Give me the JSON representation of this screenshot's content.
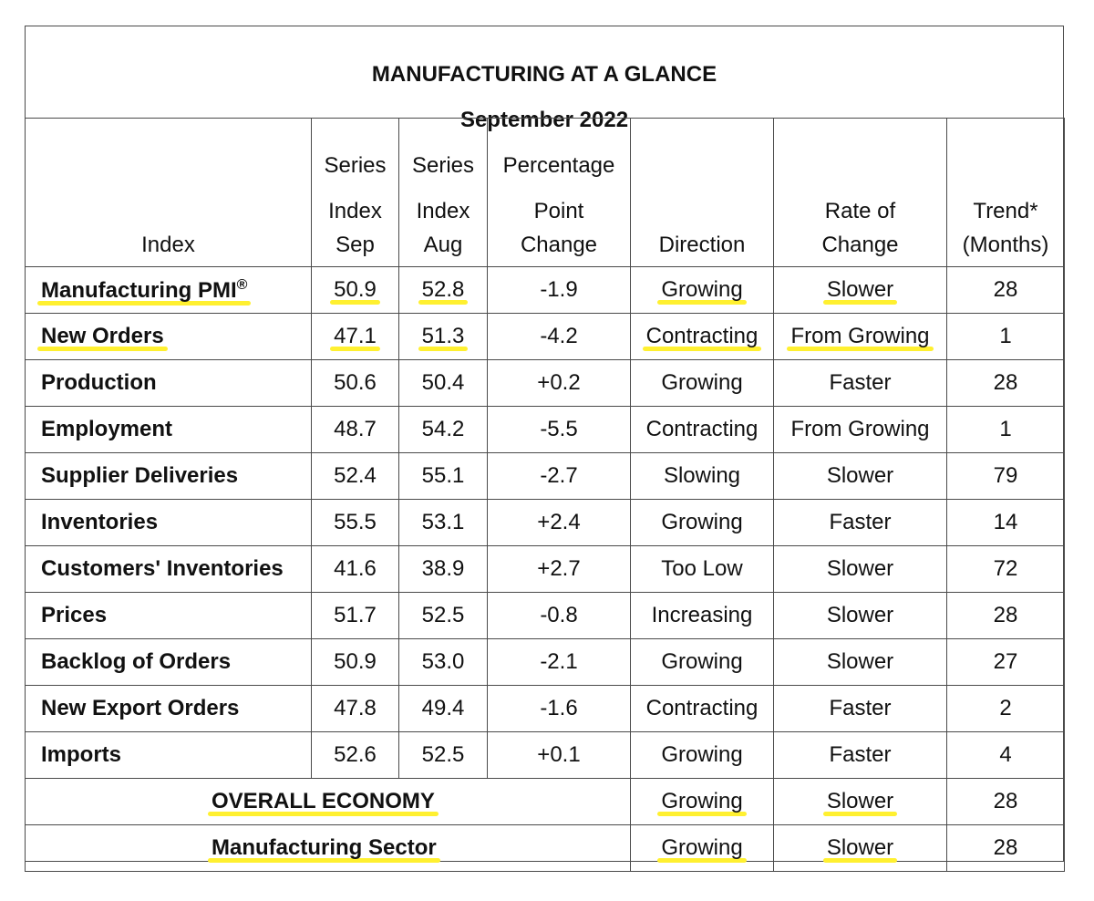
{
  "header": {
    "title": "MANUFACTURING AT A GLANCE",
    "subtitle": "September 2022"
  },
  "columns": {
    "index": [
      "",
      "",
      "Index"
    ],
    "sep": [
      "Series",
      "Index",
      "Sep"
    ],
    "aug": [
      "Series",
      "Index",
      "Aug"
    ],
    "change": [
      "Percentage",
      "Point",
      "Change"
    ],
    "direction": [
      "",
      "",
      "Direction"
    ],
    "rate": [
      "",
      "Rate of",
      "Change"
    ],
    "trend": [
      "",
      "Trend*",
      "(Months)"
    ]
  },
  "rows": [
    {
      "index": "Manufacturing PMI",
      "sup": "®",
      "sep": "50.9",
      "aug": "52.8",
      "change": "-1.9",
      "direction": "Growing",
      "rate": "Slower",
      "trend": "28",
      "highlight": true
    },
    {
      "index": "New Orders",
      "sep": "47.1",
      "aug": "51.3",
      "change": "-4.2",
      "direction": "Contracting",
      "rate": "From Growing",
      "trend": "1",
      "highlight": true
    },
    {
      "index": "Production",
      "sep": "50.6",
      "aug": "50.4",
      "change": "+0.2",
      "direction": "Growing",
      "rate": "Faster",
      "trend": "28"
    },
    {
      "index": "Employment",
      "sep": "48.7",
      "aug": "54.2",
      "change": "-5.5",
      "direction": "Contracting",
      "rate": "From Growing",
      "trend": "1"
    },
    {
      "index": "Supplier Deliveries",
      "sep": "52.4",
      "aug": "55.1",
      "change": "-2.7",
      "direction": "Slowing",
      "rate": "Slower",
      "trend": "79"
    },
    {
      "index": "Inventories",
      "sep": "55.5",
      "aug": "53.1",
      "change": "+2.4",
      "direction": "Growing",
      "rate": "Faster",
      "trend": "14"
    },
    {
      "index": "Customers' Inventories",
      "sep": "41.6",
      "aug": "38.9",
      "change": "+2.7",
      "direction": "Too Low",
      "rate": "Slower",
      "trend": "72"
    },
    {
      "index": "Prices",
      "sep": "51.7",
      "aug": "52.5",
      "change": "-0.8",
      "direction": "Increasing",
      "rate": "Slower",
      "trend": "28"
    },
    {
      "index": "Backlog of Orders",
      "sep": "50.9",
      "aug": "53.0",
      "change": "-2.1",
      "direction": "Growing",
      "rate": "Slower",
      "trend": "27"
    },
    {
      "index": "New Export Orders",
      "sep": "47.8",
      "aug": "49.4",
      "change": "-1.6",
      "direction": "Contracting",
      "rate": "Faster",
      "trend": "2"
    },
    {
      "index": "Imports",
      "sep": "52.6",
      "aug": "52.5",
      "change": "+0.1",
      "direction": "Growing",
      "rate": "Faster",
      "trend": "4"
    }
  ],
  "summary": [
    {
      "label": "OVERALL ECONOMY",
      "direction": "Growing",
      "rate": "Slower",
      "trend": "28"
    },
    {
      "label": "Manufacturing Sector",
      "direction": "Growing",
      "rate": "Slower",
      "trend": "28"
    }
  ],
  "highlight_color": "#fff030"
}
